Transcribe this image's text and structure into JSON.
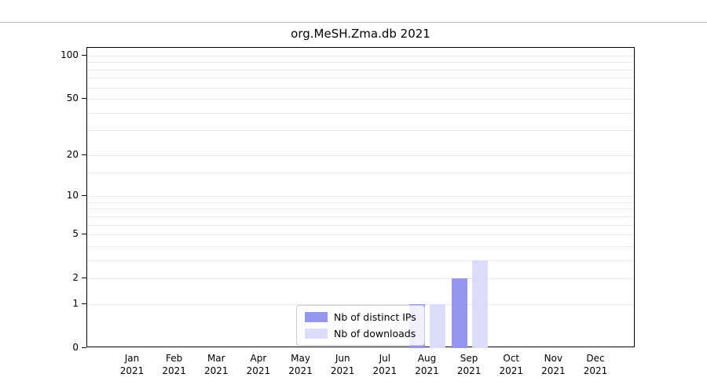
{
  "chart_data": {
    "type": "bar",
    "title": "org.MeSH.Zma.db 2021",
    "categories": [
      "Jan",
      "Feb",
      "Mar",
      "Apr",
      "May",
      "Jun",
      "Jul",
      "Aug",
      "Sep",
      "Oct",
      "Nov",
      "Dec"
    ],
    "x_year_label": "2021",
    "series": [
      {
        "name": "Nb of distinct IPs",
        "color": "#9496ee",
        "values": [
          0,
          0,
          0,
          0,
          0,
          0,
          0,
          1,
          2,
          0,
          0,
          0
        ]
      },
      {
        "name": "Nb of downloads",
        "color": "#dbdcf9",
        "values": [
          0,
          0,
          0,
          0,
          0,
          0,
          0,
          1,
          3,
          0,
          0,
          0
        ]
      }
    ],
    "y_ticks": [
      0,
      1,
      2,
      5,
      10,
      20,
      50,
      100
    ],
    "y_gridlines": [
      1,
      2,
      3,
      4,
      5,
      6,
      7,
      8,
      9,
      10,
      15,
      20,
      30,
      40,
      50,
      60,
      70,
      80,
      90,
      100
    ],
    "ylim": [
      0,
      110
    ],
    "y_scale": "log10(1+v)",
    "xlabel": "",
    "ylabel": "",
    "grid": "horizontal",
    "legend_position": "bottom-center"
  }
}
